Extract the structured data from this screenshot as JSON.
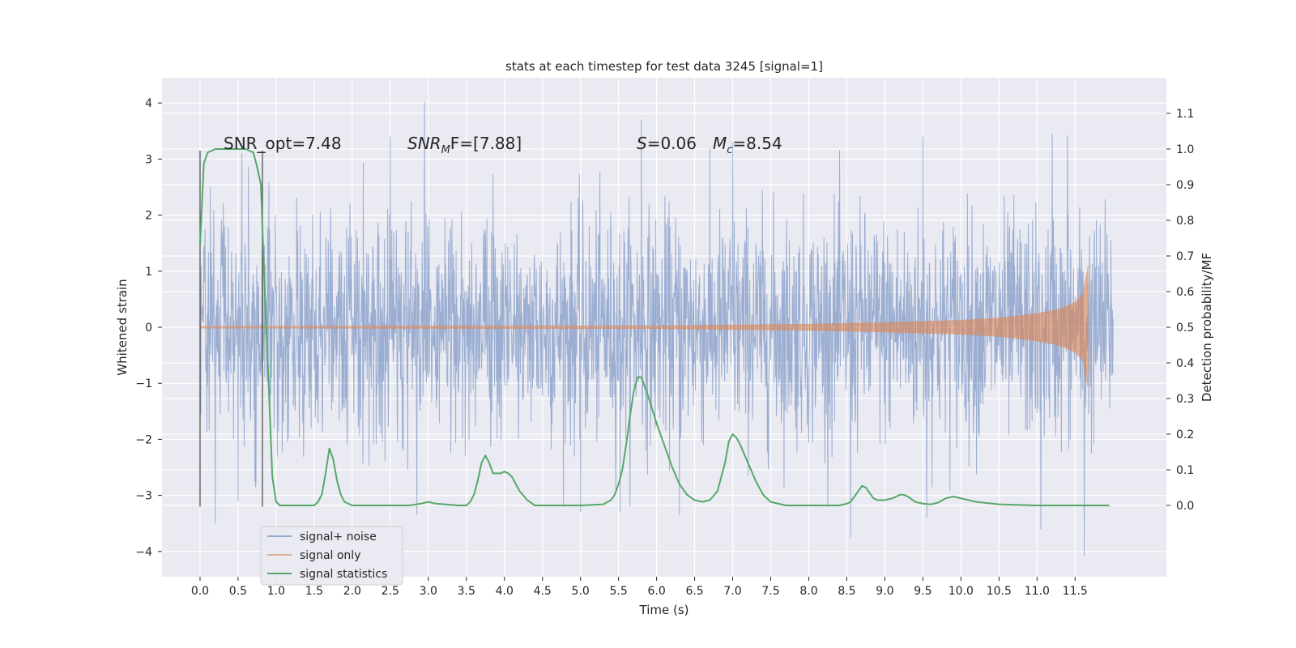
{
  "chart_data": {
    "type": "line",
    "title": "stats at each timestep for test data 3245 [signal=1]",
    "xlabel": "Time (s)",
    "ylabel_left": "Whitened strain",
    "ylabel_right": "Detection probability/MF",
    "xlim": [
      -0.5,
      12.7
    ],
    "ylim_left": [
      -4.45,
      4.45
    ],
    "ylim_right": [
      -0.2,
      1.2
    ],
    "x_ticks": [
      "0.0",
      "0.5",
      "1.0",
      "1.5",
      "2.0",
      "2.5",
      "3.0",
      "3.5",
      "4.0",
      "4.5",
      "5.0",
      "5.5",
      "6.0",
      "6.5",
      "7.0",
      "7.5",
      "8.0",
      "8.5",
      "9.0",
      "9.5",
      "10.0",
      "10.5",
      "11.0",
      "11.5"
    ],
    "y_ticks_left": [
      "4",
      "3",
      "2",
      "1",
      "0",
      "−1",
      "−2",
      "−3",
      "−4"
    ],
    "y_ticks_right": [
      "1.1",
      "1.0",
      "0.9",
      "0.8",
      "0.7",
      "0.6",
      "0.5",
      "0.4",
      "0.3",
      "0.2",
      "0.1",
      "0.0"
    ],
    "grid": true,
    "legend_position": "lower-left",
    "annotations": {
      "snr_opt": "SNR_opt=7.48",
      "snr_mf_label": "SNR",
      "snr_mf_sub": "M",
      "snr_mf_value": "F=[7.88]",
      "s_label": "S",
      "s_value": "=0.06",
      "mc_label": "M",
      "mc_sub": "c",
      "mc_value": "=8.54"
    },
    "vlines": [
      {
        "x": 0.0,
        "ymin": -3.2,
        "ymax": 3.15
      },
      {
        "x": 0.82,
        "ymin": -3.2,
        "ymax": 3.15
      }
    ],
    "series": [
      {
        "name": "signal+ noise",
        "color": "#4c72b0",
        "axis": "left",
        "x_range": [
          0.0,
          12.0
        ],
        "noise_sigma": 1.0,
        "extremes": [
          {
            "x": 0.2,
            "y": -3.5
          },
          {
            "x": 0.5,
            "y": -3.1
          },
          {
            "x": 0.55,
            "y": 3.1
          },
          {
            "x": 2.5,
            "y": 3.4
          },
          {
            "x": 2.85,
            "y": -3.35
          },
          {
            "x": 2.95,
            "y": 4.02
          },
          {
            "x": 5.0,
            "y": -3.3
          },
          {
            "x": 5.52,
            "y": -3.3
          },
          {
            "x": 5.8,
            "y": 3.7
          },
          {
            "x": 6.3,
            "y": -3.35
          },
          {
            "x": 7.0,
            "y": 3.3
          },
          {
            "x": 8.55,
            "y": -3.75
          },
          {
            "x": 9.5,
            "y": 3.4
          },
          {
            "x": 9.55,
            "y": -3.4
          },
          {
            "x": 11.05,
            "y": -3.6
          },
          {
            "x": 11.2,
            "y": 3.45
          },
          {
            "x": 11.4,
            "y": 3.42
          },
          {
            "x": 11.62,
            "y": -4.07
          }
        ]
      },
      {
        "name": "signal only",
        "color": "#dd8452",
        "axis": "left",
        "x_range": [
          0.0,
          11.67
        ],
        "amplitude_envelope": [
          [
            0.0,
            0.02
          ],
          [
            6.0,
            0.03
          ],
          [
            8.0,
            0.06
          ],
          [
            9.0,
            0.09
          ],
          [
            10.0,
            0.13
          ],
          [
            10.5,
            0.17
          ],
          [
            11.0,
            0.25
          ],
          [
            11.3,
            0.33
          ],
          [
            11.5,
            0.45
          ],
          [
            11.6,
            0.6
          ],
          [
            11.67,
            1.1
          ]
        ],
        "end_value": -0.8
      },
      {
        "name": "signal statistics",
        "color": "#55a868",
        "axis": "right",
        "x": [
          0.0,
          0.05,
          0.1,
          0.2,
          0.3,
          0.5,
          0.6,
          0.7,
          0.75,
          0.8,
          0.85,
          0.9,
          0.95,
          1.0,
          1.05,
          1.1,
          1.3,
          1.5,
          1.55,
          1.6,
          1.65,
          1.7,
          1.75,
          1.8,
          1.85,
          1.9,
          2.0,
          2.5,
          2.75,
          2.9,
          3.0,
          3.1,
          3.4,
          3.5,
          3.55,
          3.6,
          3.65,
          3.7,
          3.75,
          3.8,
          3.85,
          3.9,
          3.95,
          4.0,
          4.05,
          4.1,
          4.15,
          4.2,
          4.3,
          4.4,
          4.6,
          5.0,
          5.3,
          5.4,
          5.45,
          5.5,
          5.55,
          5.6,
          5.65,
          5.7,
          5.75,
          5.8,
          5.85,
          5.9,
          6.0,
          6.1,
          6.2,
          6.3,
          6.4,
          6.5,
          6.6,
          6.7,
          6.8,
          6.85,
          6.9,
          6.95,
          7.0,
          7.05,
          7.1,
          7.2,
          7.3,
          7.4,
          7.5,
          7.7,
          8.0,
          8.4,
          8.5,
          8.55,
          8.6,
          8.65,
          8.7,
          8.75,
          8.8,
          8.85,
          8.9,
          8.95,
          9.0,
          9.1,
          9.2,
          9.25,
          9.3,
          9.4,
          9.5,
          9.6,
          9.7,
          9.8,
          9.9,
          10.0,
          10.2,
          10.5,
          11.0,
          11.5,
          11.7,
          11.9,
          11.95
        ],
        "y": [
          0.73,
          0.96,
          0.99,
          1.0,
          1.0,
          1.0,
          1.0,
          0.99,
          0.95,
          0.9,
          0.6,
          0.35,
          0.08,
          0.01,
          0.0,
          0.0,
          0.0,
          0.0,
          0.01,
          0.03,
          0.09,
          0.16,
          0.13,
          0.07,
          0.03,
          0.01,
          0.0,
          0.0,
          0.0,
          0.005,
          0.01,
          0.005,
          0.0,
          0.0,
          0.01,
          0.03,
          0.07,
          0.12,
          0.14,
          0.12,
          0.09,
          0.09,
          0.09,
          0.095,
          0.09,
          0.08,
          0.06,
          0.04,
          0.015,
          0.0,
          0.0,
          0.0,
          0.003,
          0.015,
          0.03,
          0.06,
          0.1,
          0.17,
          0.25,
          0.32,
          0.36,
          0.36,
          0.33,
          0.3,
          0.23,
          0.17,
          0.11,
          0.06,
          0.03,
          0.015,
          0.01,
          0.015,
          0.04,
          0.08,
          0.12,
          0.18,
          0.2,
          0.19,
          0.17,
          0.12,
          0.07,
          0.03,
          0.01,
          0.0,
          0.0,
          0.0,
          0.005,
          0.01,
          0.025,
          0.04,
          0.055,
          0.05,
          0.035,
          0.02,
          0.015,
          0.015,
          0.015,
          0.02,
          0.03,
          0.03,
          0.025,
          0.01,
          0.005,
          0.003,
          0.008,
          0.02,
          0.025,
          0.02,
          0.01,
          0.003,
          0.0,
          0.0,
          0.0,
          0.0,
          0.0
        ]
      }
    ]
  }
}
